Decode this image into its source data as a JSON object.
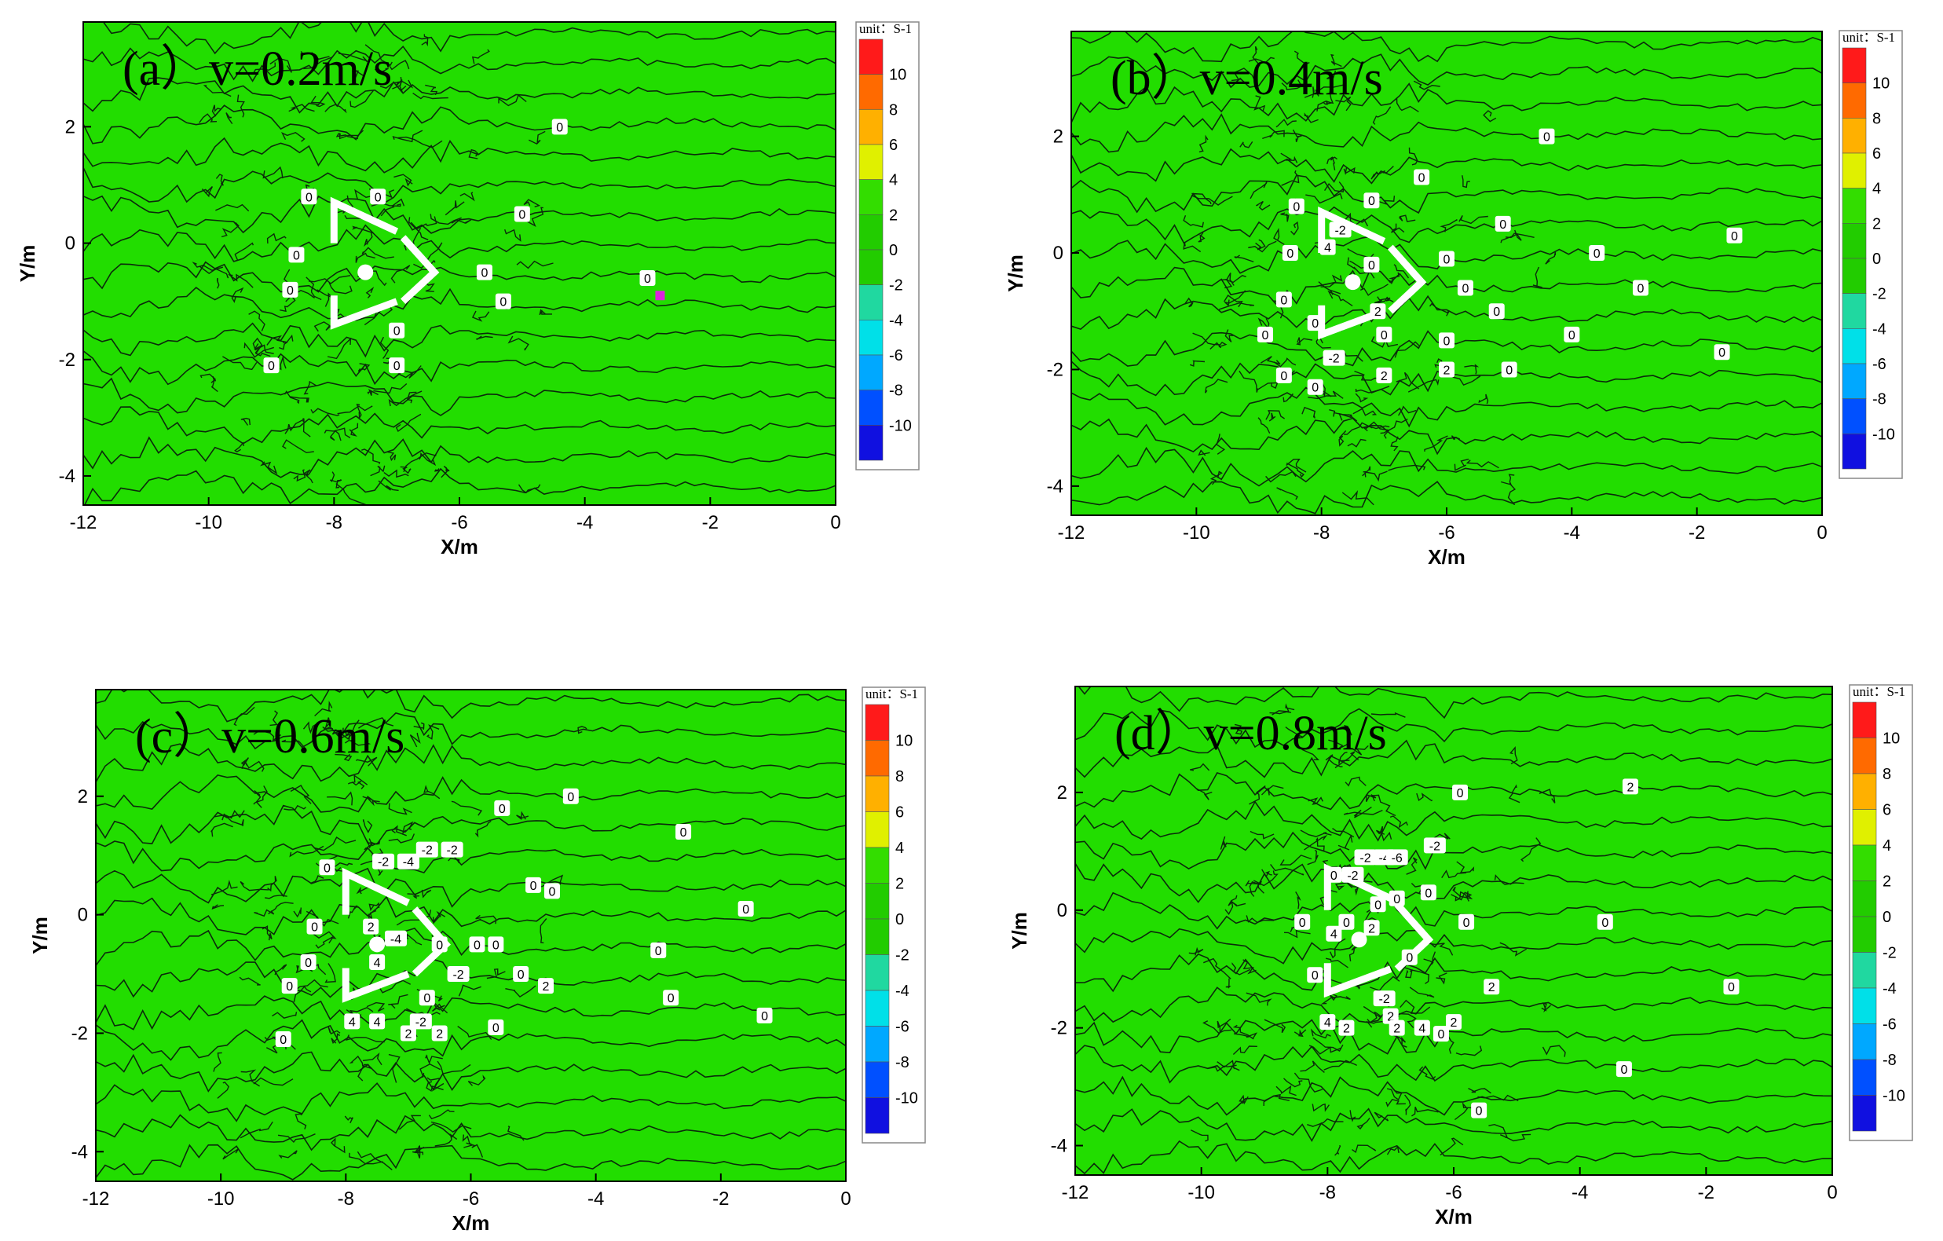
{
  "chart_data": [
    {
      "type": "contour",
      "title": "(a）v=0.2m/s",
      "xlabel": "X/m",
      "ylabel": "Y/m",
      "xlim": [
        -12,
        0
      ],
      "ylim": [
        -4.5,
        3.8
      ],
      "xticks": [
        -12,
        -10,
        -8,
        -6,
        -4,
        -2,
        0
      ],
      "yticks": [
        -4,
        -2,
        0,
        2
      ],
      "legend": {
        "unit": "unit：S-1",
        "levels": [
          10,
          8,
          6,
          4,
          2,
          0,
          -2,
          -4,
          -6,
          -8,
          -10
        ],
        "colors": [
          "#ff1a1a",
          "#ff6a00",
          "#ffb000",
          "#e0f000",
          "#33dd00",
          "#22cc00",
          "#22cc00",
          "#20d8a0",
          "#00e0e8",
          "#00a8ff",
          "#0050ff",
          "#1010e0"
        ]
      },
      "contour_labels": [
        {
          "x": -8.4,
          "y": 0.8,
          "v": "0"
        },
        {
          "x": -7.3,
          "y": 0.8,
          "v": "0"
        },
        {
          "x": -5.0,
          "y": 0.5,
          "v": "0"
        },
        {
          "x": -4.4,
          "y": 2.0,
          "v": "0"
        },
        {
          "x": -8.6,
          "y": -0.2,
          "v": "0"
        },
        {
          "x": -8.7,
          "y": -0.8,
          "v": "0"
        },
        {
          "x": -5.6,
          "y": -0.5,
          "v": "0"
        },
        {
          "x": -5.3,
          "y": -1.0,
          "v": "0"
        },
        {
          "x": -7.0,
          "y": -1.5,
          "v": "0"
        },
        {
          "x": -7.0,
          "y": -2.1,
          "v": "0"
        },
        {
          "x": -9.0,
          "y": -2.1,
          "v": "0"
        },
        {
          "x": -3.0,
          "y": -0.6,
          "v": "0"
        }
      ],
      "marker": {
        "x": -2.8,
        "y": -0.9,
        "color": "#dd22dd"
      }
    },
    {
      "type": "contour",
      "title": "(b）v=0.4m/s",
      "xlabel": "X/m",
      "ylabel": "Y/m",
      "xlim": [
        -12,
        0
      ],
      "ylim": [
        -4.5,
        3.8
      ],
      "xticks": [
        -12,
        -10,
        -8,
        -6,
        -4,
        -2,
        0
      ],
      "yticks": [
        -4,
        -2,
        0,
        2
      ],
      "legend": {
        "unit": "unit：S-1",
        "levels": [
          10,
          8,
          6,
          4,
          2,
          0,
          -2,
          -4,
          -6,
          -8,
          -10
        ],
        "colors": [
          "#ff1a1a",
          "#ff6a00",
          "#ffb000",
          "#e0f000",
          "#33dd00",
          "#22cc00",
          "#22cc00",
          "#20d8a0",
          "#00e0e8",
          "#00a8ff",
          "#0050ff",
          "#1010e0"
        ]
      },
      "contour_labels": [
        {
          "x": -8.4,
          "y": 0.8,
          "v": "0"
        },
        {
          "x": -7.2,
          "y": 0.9,
          "v": "0"
        },
        {
          "x": -6.4,
          "y": 1.3,
          "v": "0"
        },
        {
          "x": -4.4,
          "y": 2.0,
          "v": "0"
        },
        {
          "x": -5.1,
          "y": 0.5,
          "v": "0"
        },
        {
          "x": -7.7,
          "y": 0.4,
          "v": "-2"
        },
        {
          "x": -8.5,
          "y": 0.0,
          "v": "0"
        },
        {
          "x": -7.9,
          "y": 0.1,
          "v": "4"
        },
        {
          "x": -7.2,
          "y": -0.2,
          "v": "0"
        },
        {
          "x": -6.0,
          "y": -0.1,
          "v": "0"
        },
        {
          "x": -5.7,
          "y": -0.6,
          "v": "0"
        },
        {
          "x": -5.2,
          "y": -1.0,
          "v": "0"
        },
        {
          "x": -7.1,
          "y": -1.0,
          "v": "2"
        },
        {
          "x": -8.6,
          "y": -0.8,
          "v": "0"
        },
        {
          "x": -8.1,
          "y": -1.2,
          "v": "0"
        },
        {
          "x": -8.9,
          "y": -1.4,
          "v": "0"
        },
        {
          "x": -7.0,
          "y": -1.4,
          "v": "0"
        },
        {
          "x": -6.0,
          "y": -1.5,
          "v": "0"
        },
        {
          "x": -7.8,
          "y": -1.8,
          "v": "-2"
        },
        {
          "x": -7.0,
          "y": -2.1,
          "v": "2"
        },
        {
          "x": -6.0,
          "y": -2.0,
          "v": "2"
        },
        {
          "x": -5.0,
          "y": -2.0,
          "v": "0"
        },
        {
          "x": -8.6,
          "y": -2.1,
          "v": "0"
        },
        {
          "x": -8.1,
          "y": -2.3,
          "v": "0"
        },
        {
          "x": -3.6,
          "y": 0.0,
          "v": "0"
        },
        {
          "x": -2.9,
          "y": -0.6,
          "v": "0"
        },
        {
          "x": -4.0,
          "y": -1.4,
          "v": "0"
        },
        {
          "x": -1.4,
          "y": 0.3,
          "v": "0"
        },
        {
          "x": -1.6,
          "y": -1.7,
          "v": "0"
        }
      ],
      "marker": null
    },
    {
      "type": "contour",
      "title": "(c）v=0.6m/s",
      "xlabel": "X/m",
      "ylabel": "Y/m",
      "xlim": [
        -12,
        0
      ],
      "ylim": [
        -4.5,
        3.8
      ],
      "xticks": [
        -12,
        -10,
        -8,
        -6,
        -4,
        -2,
        0
      ],
      "yticks": [
        -4,
        -2,
        0,
        2
      ],
      "legend": {
        "unit": "unit：S-1",
        "levels": [
          10,
          8,
          6,
          4,
          2,
          0,
          -2,
          -4,
          -6,
          -8,
          -10
        ],
        "colors": [
          "#ff1a1a",
          "#ff6a00",
          "#ffb000",
          "#e0f000",
          "#33dd00",
          "#22cc00",
          "#22cc00",
          "#20d8a0",
          "#00e0e8",
          "#00a8ff",
          "#0050ff",
          "#1010e0"
        ]
      },
      "contour_labels": [
        {
          "x": -7.4,
          "y": 0.9,
          "v": "-2"
        },
        {
          "x": -6.7,
          "y": 1.1,
          "v": "-2"
        },
        {
          "x": -6.3,
          "y": 1.1,
          "v": "-2"
        },
        {
          "x": -7.0,
          "y": 0.9,
          "v": "-4"
        },
        {
          "x": -8.3,
          "y": 0.8,
          "v": "0"
        },
        {
          "x": -5.5,
          "y": 1.8,
          "v": "0"
        },
        {
          "x": -4.4,
          "y": 2.0,
          "v": "0"
        },
        {
          "x": -2.6,
          "y": 1.4,
          "v": "0"
        },
        {
          "x": -5.0,
          "y": 0.5,
          "v": "0"
        },
        {
          "x": -4.7,
          "y": 0.4,
          "v": "0"
        },
        {
          "x": -8.5,
          "y": -0.2,
          "v": "0"
        },
        {
          "x": -7.6,
          "y": -0.2,
          "v": "2"
        },
        {
          "x": -7.2,
          "y": -0.4,
          "v": "-4"
        },
        {
          "x": -7.5,
          "y": -0.8,
          "v": "4"
        },
        {
          "x": -6.5,
          "y": -0.5,
          "v": "0"
        },
        {
          "x": -5.9,
          "y": -0.5,
          "v": "0"
        },
        {
          "x": -5.6,
          "y": -0.5,
          "v": "0"
        },
        {
          "x": -8.6,
          "y": -0.8,
          "v": "0"
        },
        {
          "x": -6.2,
          "y": -1.0,
          "v": "-2"
        },
        {
          "x": -5.2,
          "y": -1.0,
          "v": "0"
        },
        {
          "x": -4.8,
          "y": -1.2,
          "v": "2"
        },
        {
          "x": -6.7,
          "y": -1.4,
          "v": "0"
        },
        {
          "x": -8.9,
          "y": -1.2,
          "v": "0"
        },
        {
          "x": -7.9,
          "y": -1.8,
          "v": "4"
        },
        {
          "x": -7.5,
          "y": -1.8,
          "v": "4"
        },
        {
          "x": -6.8,
          "y": -1.8,
          "v": "-2"
        },
        {
          "x": -7.0,
          "y": -2.0,
          "v": "2"
        },
        {
          "x": -6.5,
          "y": -2.0,
          "v": "2"
        },
        {
          "x": -5.6,
          "y": -1.9,
          "v": "0"
        },
        {
          "x": -9.0,
          "y": -2.1,
          "v": "0"
        },
        {
          "x": -3.0,
          "y": -0.6,
          "v": "0"
        },
        {
          "x": -2.8,
          "y": -1.4,
          "v": "0"
        },
        {
          "x": -1.6,
          "y": 0.1,
          "v": "0"
        },
        {
          "x": -1.3,
          "y": -1.7,
          "v": "0"
        }
      ],
      "marker": null
    },
    {
      "type": "contour",
      "title": "(d）v=0.8m/s",
      "xlabel": "X/m",
      "ylabel": "Y/m",
      "xlim": [
        -12,
        0
      ],
      "ylim": [
        -4.5,
        3.8
      ],
      "xticks": [
        -12,
        -10,
        -8,
        -6,
        -4,
        -2,
        0
      ],
      "yticks": [
        -4,
        -2,
        0,
        2
      ],
      "legend": {
        "unit": "unit：S-1",
        "levels": [
          10,
          8,
          6,
          4,
          2,
          0,
          -2,
          -4,
          -6,
          -8,
          -10
        ],
        "colors": [
          "#ff1a1a",
          "#ff6a00",
          "#ffb000",
          "#e0f000",
          "#33dd00",
          "#22cc00",
          "#22cc00",
          "#20d8a0",
          "#00e0e8",
          "#00a8ff",
          "#0050ff",
          "#1010e0"
        ]
      },
      "contour_labels": [
        {
          "x": -7.4,
          "y": 0.9,
          "v": "-2"
        },
        {
          "x": -7.1,
          "y": 0.9,
          "v": "-4"
        },
        {
          "x": -6.9,
          "y": 0.9,
          "v": "-6"
        },
        {
          "x": -6.3,
          "y": 1.1,
          "v": "-2"
        },
        {
          "x": -7.6,
          "y": 0.6,
          "v": "-2"
        },
        {
          "x": -7.9,
          "y": 0.6,
          "v": "0"
        },
        {
          "x": -6.4,
          "y": 0.3,
          "v": "0"
        },
        {
          "x": -5.9,
          "y": 2.0,
          "v": "0"
        },
        {
          "x": -3.2,
          "y": 2.1,
          "v": "2"
        },
        {
          "x": -6.9,
          "y": 0.2,
          "v": "0"
        },
        {
          "x": -7.2,
          "y": 0.1,
          "v": "0"
        },
        {
          "x": -8.4,
          "y": -0.2,
          "v": "0"
        },
        {
          "x": -7.9,
          "y": -0.4,
          "v": "4"
        },
        {
          "x": -7.7,
          "y": -0.2,
          "v": "0"
        },
        {
          "x": -7.3,
          "y": -0.3,
          "v": "2"
        },
        {
          "x": -5.8,
          "y": -0.2,
          "v": "0"
        },
        {
          "x": -3.6,
          "y": -0.2,
          "v": "0"
        },
        {
          "x": -8.2,
          "y": -1.1,
          "v": "0"
        },
        {
          "x": -6.7,
          "y": -0.8,
          "v": "0"
        },
        {
          "x": -7.1,
          "y": -1.5,
          "v": "-2"
        },
        {
          "x": -5.4,
          "y": -1.3,
          "v": "2"
        },
        {
          "x": -7.0,
          "y": -1.8,
          "v": "2"
        },
        {
          "x": -8.0,
          "y": -1.9,
          "v": "4"
        },
        {
          "x": -7.7,
          "y": -2.0,
          "v": "2"
        },
        {
          "x": -6.9,
          "y": -2.0,
          "v": "2"
        },
        {
          "x": -6.5,
          "y": -2.0,
          "v": "4"
        },
        {
          "x": -6.2,
          "y": -2.1,
          "v": "0"
        },
        {
          "x": -6.0,
          "y": -1.9,
          "v": "2"
        },
        {
          "x": -5.6,
          "y": -3.4,
          "v": "0"
        },
        {
          "x": -3.3,
          "y": -2.7,
          "v": "0"
        },
        {
          "x": -1.6,
          "y": -1.3,
          "v": "0"
        }
      ],
      "marker": null
    }
  ]
}
